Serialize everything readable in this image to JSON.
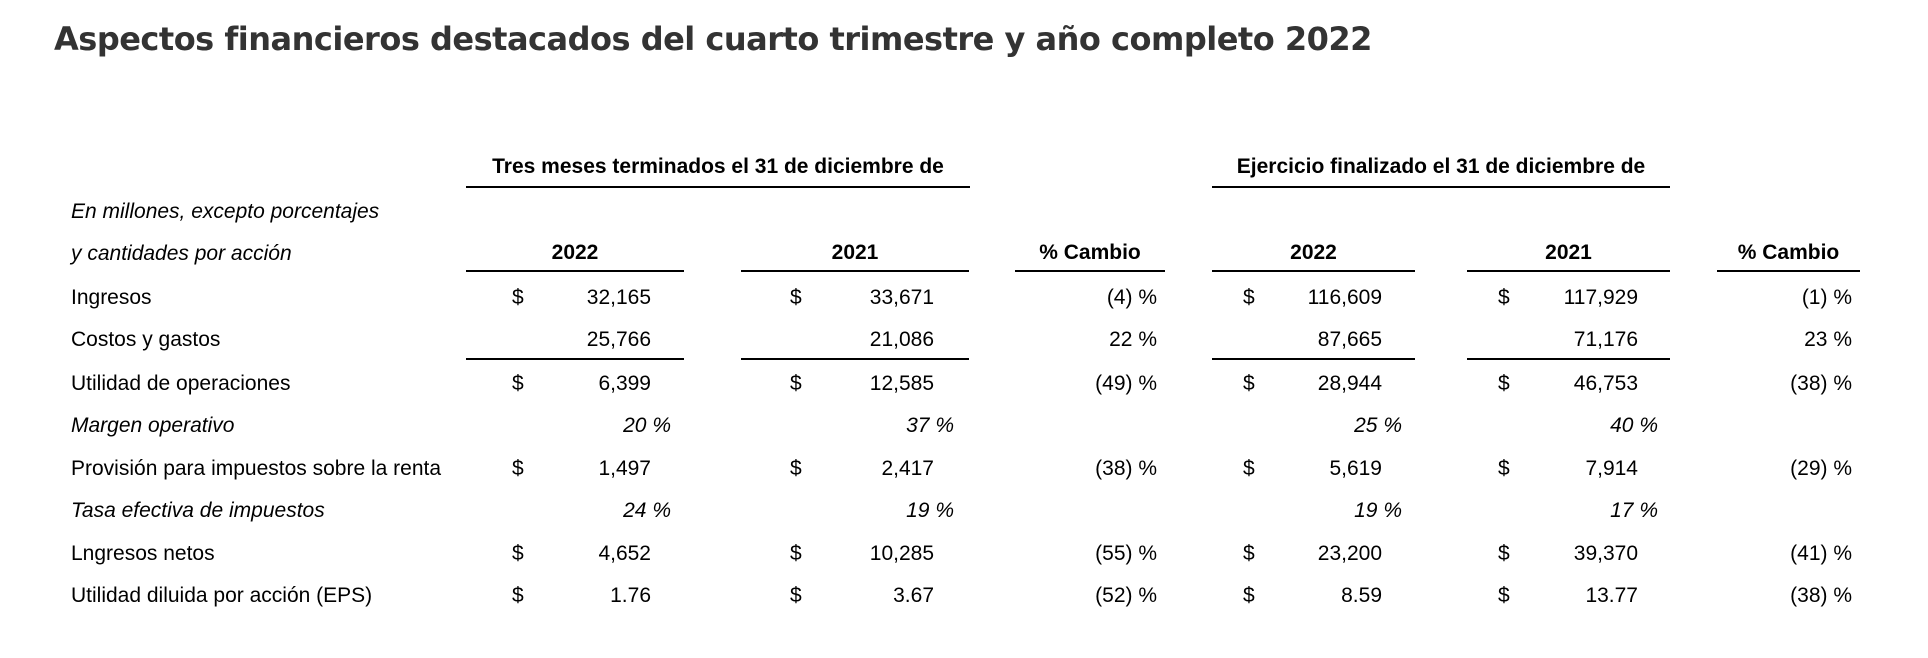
{
  "title": "Aspectos financieros destacados del cuarto trimestre y año completo 2022",
  "table": {
    "group_headers": [
      "Tres meses terminados el 31 de diciembre de",
      "Ejercicio finalizado el 31 de diciembre de"
    ],
    "stub_header": [
      "En millones, excepto porcentajes",
      "y cantidades por acción"
    ],
    "columns": [
      "2022",
      "2021",
      "% Cambio",
      "2022",
      "2021",
      "% Cambio"
    ],
    "rows": [
      {
        "label": "Ingresos",
        "italic": false,
        "q22": "32,165",
        "q21": "33,671",
        "qchg": "(4) %",
        "y22": "116,609",
        "y21": "117,929",
        "ychg": "(1) %"
      },
      {
        "label": "Costos y gastos",
        "italic": false,
        "q22": "25,766",
        "q21": "21,086",
        "qchg": "22 %",
        "y22": "87,665",
        "y21": "71,176",
        "ychg": "23 %"
      },
      {
        "label": "Utilidad de operaciones",
        "italic": false,
        "q22": "6,399",
        "q21": "12,585",
        "qchg": "(49) %",
        "y22": "28,944",
        "y21": "46,753",
        "ychg": "(38) %"
      },
      {
        "label": "Margen operativo",
        "italic": true,
        "q22": "20 %",
        "q21": "37 %",
        "qchg": "",
        "y22": "25 %",
        "y21": "40 %",
        "ychg": ""
      },
      {
        "label": "Provisión para impuestos sobre la renta",
        "italic": false,
        "q22": "1,497",
        "q21": "2,417",
        "qchg": "(38) %",
        "y22": "5,619",
        "y21": "7,914",
        "ychg": "(29) %"
      },
      {
        "label": "Tasa efectiva de impuestos",
        "italic": true,
        "q22": "24 %",
        "q21": "19 %",
        "qchg": "",
        "y22": "19 %",
        "y21": "17 %",
        "ychg": ""
      },
      {
        "label": "Lngresos netos",
        "italic": false,
        "q22": "4,652",
        "q21": "10,285",
        "qchg": "(55) %",
        "y22": "23,200",
        "y21": "39,370",
        "ychg": "(41) %"
      },
      {
        "label": "Utilidad diluida por acción (EPS)",
        "italic": false,
        "q22": "1.76",
        "q21": "3.67",
        "qchg": "(52) %",
        "y22": "8.59",
        "y21": "13.77",
        "ychg": "(38) %"
      }
    ],
    "currency_symbol": "$"
  }
}
